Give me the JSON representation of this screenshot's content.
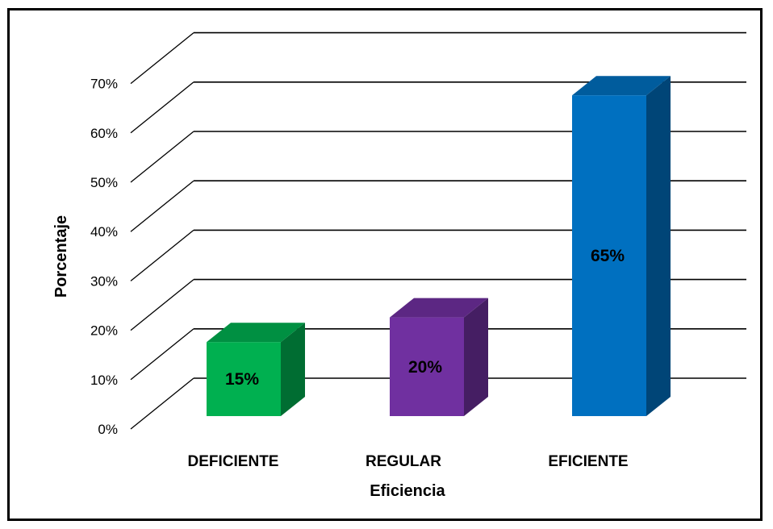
{
  "chart_data": {
    "type": "bar",
    "categories": [
      "DEFICIENTE",
      "REGULAR",
      "EFICIENTE"
    ],
    "values": [
      15,
      20,
      65
    ],
    "data_labels": [
      "15%",
      "20%",
      "65%"
    ],
    "colors": [
      "#00B050",
      "#7030A0",
      "#0070C0"
    ],
    "xlabel": "Eficiencia",
    "ylabel": "Porcentaje",
    "ylim": [
      0,
      70
    ],
    "yticks": [
      0,
      10,
      20,
      30,
      40,
      50,
      60,
      70
    ],
    "ytick_labels": [
      "0%",
      "10%",
      "20%",
      "30%",
      "40%",
      "50%",
      "60%",
      "70%"
    ],
    "grid": true,
    "legend": "none",
    "style": "3d-columns"
  }
}
